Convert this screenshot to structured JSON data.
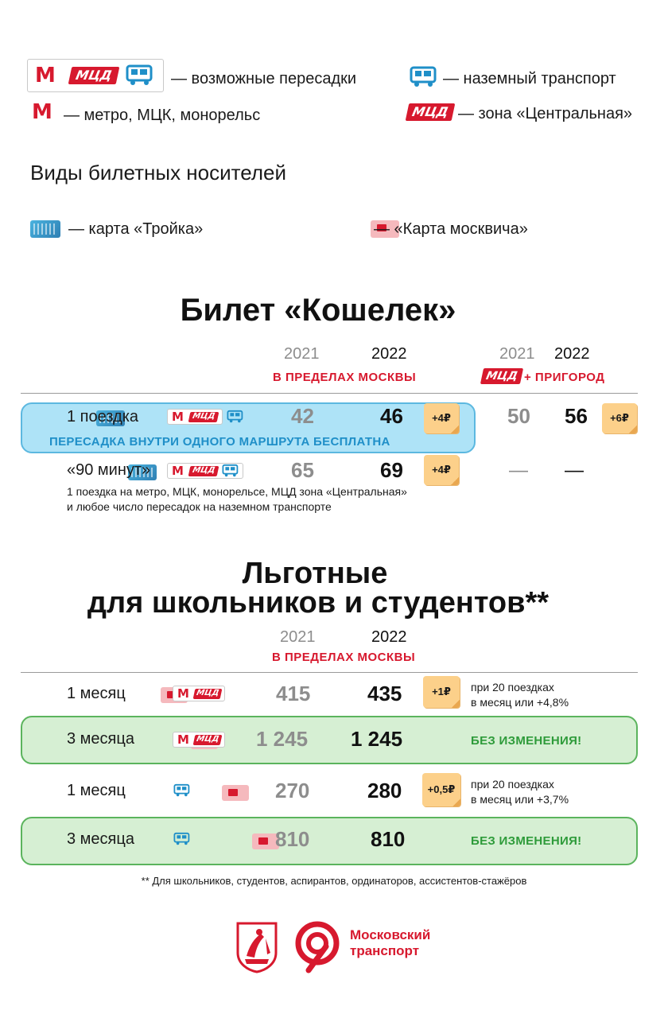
{
  "legend": {
    "transfers": "— возможные пересадки",
    "ground": "— наземный транспорт",
    "metro": "— метро, МЦК, монорельс",
    "central_zone": "— зона «Центральная»",
    "mcd_badge": "МЦД",
    "metro_letter": "М"
  },
  "carriers": {
    "heading": "Виды билетных носителей",
    "troika": "— карта «Тройка»",
    "moskvich": "— «Карта москвича»"
  },
  "wallet": {
    "title": "Билет «Кошелек»",
    "year_old": "2021",
    "year_new": "2022",
    "year_old_2": "2021",
    "year_new_2": "2022",
    "within_moscow": "В ПРЕДЕЛАХ МОСКВЫ",
    "suburb": "+ ПРИГОРОД",
    "mcd_badge": "МЦД",
    "rows": [
      {
        "label": "1 поездка",
        "old": "42",
        "new": "46",
        "delta": "+4₽",
        "suburb_old": "50",
        "suburb_new": "56",
        "suburb_delta": "+6₽",
        "note": "ПЕРЕСАДКА ВНУТРИ ОДНОГО МАРШРУТА БЕСПЛАТНА"
      },
      {
        "label": "«90 минут»",
        "old": "65",
        "new": "69",
        "delta": "+4₽",
        "suburb_old": "—",
        "suburb_new": "—",
        "note_line1": "1 поездка на метро, МЦК, монорельсе, МЦД зона «Центральная»",
        "note_line2": "и любое число пересадок на наземном транспорте"
      }
    ]
  },
  "discount": {
    "title_line1": "Льготные",
    "title_line2": "для школьников и студентов**",
    "year_old": "2021",
    "year_new": "2022",
    "within_moscow": "В ПРЕДЕЛАХ МОСКВЫ",
    "rows": [
      {
        "label": "1 месяц",
        "old": "415",
        "new": "435",
        "delta": "+1₽",
        "note_line1": "при 20 поездках",
        "note_line2": "в месяц или +4,8%"
      },
      {
        "label": "3 месяца",
        "old": "1 245",
        "new": "1 245",
        "status": "БЕЗ ИЗМЕНЕНИЯ!"
      },
      {
        "label": "1 месяц",
        "old": "270",
        "new": "280",
        "delta": "+0,5₽",
        "note_line1": "при 20 поездках",
        "note_line2": "в месяц или +3,7%"
      },
      {
        "label": "3 месяца",
        "old": "810",
        "new": "810",
        "status": "БЕЗ ИЗМЕНЕНИЯ!"
      }
    ],
    "footnote": "** Для школьников, студентов, аспирантов, ординаторов, ассистентов-стажёров"
  },
  "footer": {
    "brand_line1": "Московский",
    "brand_line2": "транспорт"
  },
  "colors": {
    "red": "#d7192e",
    "blue": "#1f8fc8",
    "green": "#2e9b3a",
    "sticker": "#fcd08a"
  }
}
